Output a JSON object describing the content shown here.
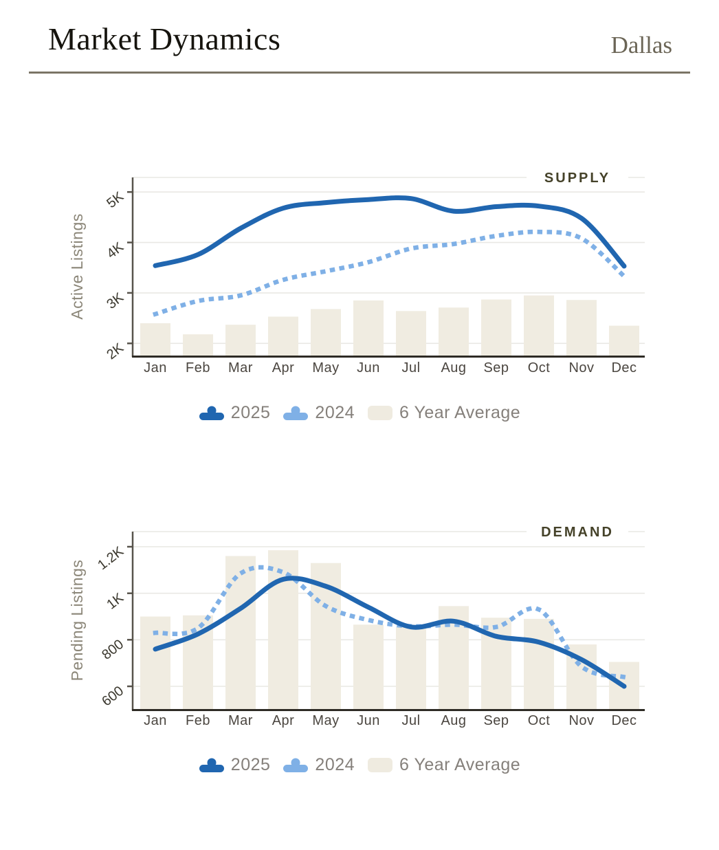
{
  "header": {
    "title": "Market Dynamics",
    "location": "Dallas"
  },
  "legend": {
    "items": [
      {
        "label": "2025",
        "type": "line",
        "color": "#2066b0"
      },
      {
        "label": "2024",
        "type": "line",
        "color": "#7fb0e6"
      },
      {
        "label": "6 Year Average",
        "type": "bar",
        "color": "#efebe0"
      }
    ]
  },
  "colors": {
    "line_2025": "#2066b0",
    "line_2024": "#7fb0e6",
    "bar_average": "#f0ece1",
    "gridline": "#e9e8e4",
    "axis_spine": "#57534b",
    "axis_bottom": "#2e2b25",
    "panel_title": "#454229",
    "axis_title": "#8b8678",
    "tick_label": "#3b382e",
    "month_label": "#4b4640",
    "header_rule": "#7b7566"
  },
  "chart_data": [
    {
      "type": "line",
      "subtype": "line-and-bar-combo",
      "title": "SUPPLY",
      "ylabel": "Active Listings",
      "xlabel": "",
      "grid": true,
      "legend_position": "bottom",
      "categories": [
        "Jan",
        "Feb",
        "Mar",
        "Apr",
        "May",
        "Jun",
        "Jul",
        "Aug",
        "Sep",
        "Oct",
        "Nov",
        "Dec"
      ],
      "yticks": [
        {
          "value": 2000,
          "label": "2K"
        },
        {
          "value": 3000,
          "label": "3K"
        },
        {
          "value": 4000,
          "label": "4K"
        },
        {
          "value": 5000,
          "label": "5K"
        }
      ],
      "ylim": [
        1760,
        5290
      ],
      "series": [
        {
          "name": "2025",
          "type": "line",
          "style": "solid",
          "color": "#2066b0",
          "values": [
            3540,
            3760,
            4280,
            4680,
            4790,
            4850,
            4870,
            4620,
            4710,
            4720,
            4480,
            3530
          ]
        },
        {
          "name": "2024",
          "type": "line",
          "style": "dotted",
          "color": "#7fb0e6",
          "values": [
            2580,
            2840,
            2950,
            3260,
            3430,
            3610,
            3880,
            3970,
            4130,
            4210,
            4080,
            3330
          ]
        },
        {
          "name": "6 Year Average",
          "type": "bar",
          "style": "bar",
          "color": "#f0ece1",
          "values": [
            2400,
            2180,
            2370,
            2530,
            2680,
            2850,
            2640,
            2710,
            2870,
            2950,
            2860,
            2350
          ]
        }
      ]
    },
    {
      "type": "line",
      "subtype": "line-and-bar-combo",
      "title": "DEMAND",
      "ylabel": "Pending Listings",
      "xlabel": "",
      "grid": true,
      "legend_position": "bottom",
      "categories": [
        "Jan",
        "Feb",
        "Mar",
        "Apr",
        "May",
        "Jun",
        "Jul",
        "Aug",
        "Sep",
        "Oct",
        "Nov",
        "Dec"
      ],
      "yticks": [
        {
          "value": 600,
          "label": "600"
        },
        {
          "value": 800,
          "label": "800"
        },
        {
          "value": 1000,
          "label": "1K"
        },
        {
          "value": 1200,
          "label": "1.2K"
        }
      ],
      "ylim": [
        500,
        1260
      ],
      "series": [
        {
          "name": "2025",
          "type": "line",
          "style": "solid",
          "color": "#2066b0",
          "values": [
            760,
            825,
            935,
            1060,
            1030,
            940,
            855,
            880,
            815,
            790,
            715,
            600
          ]
        },
        {
          "name": "2024",
          "type": "line",
          "style": "dotted",
          "color": "#7fb0e6",
          "values": [
            830,
            850,
            1085,
            1090,
            945,
            885,
            858,
            865,
            855,
            930,
            685,
            640
          ]
        },
        {
          "name": "6 Year Average",
          "type": "bar",
          "style": "bar",
          "color": "#f0ece1",
          "values": [
            900,
            905,
            1160,
            1185,
            1130,
            865,
            855,
            945,
            895,
            890,
            780,
            705
          ]
        }
      ]
    }
  ]
}
